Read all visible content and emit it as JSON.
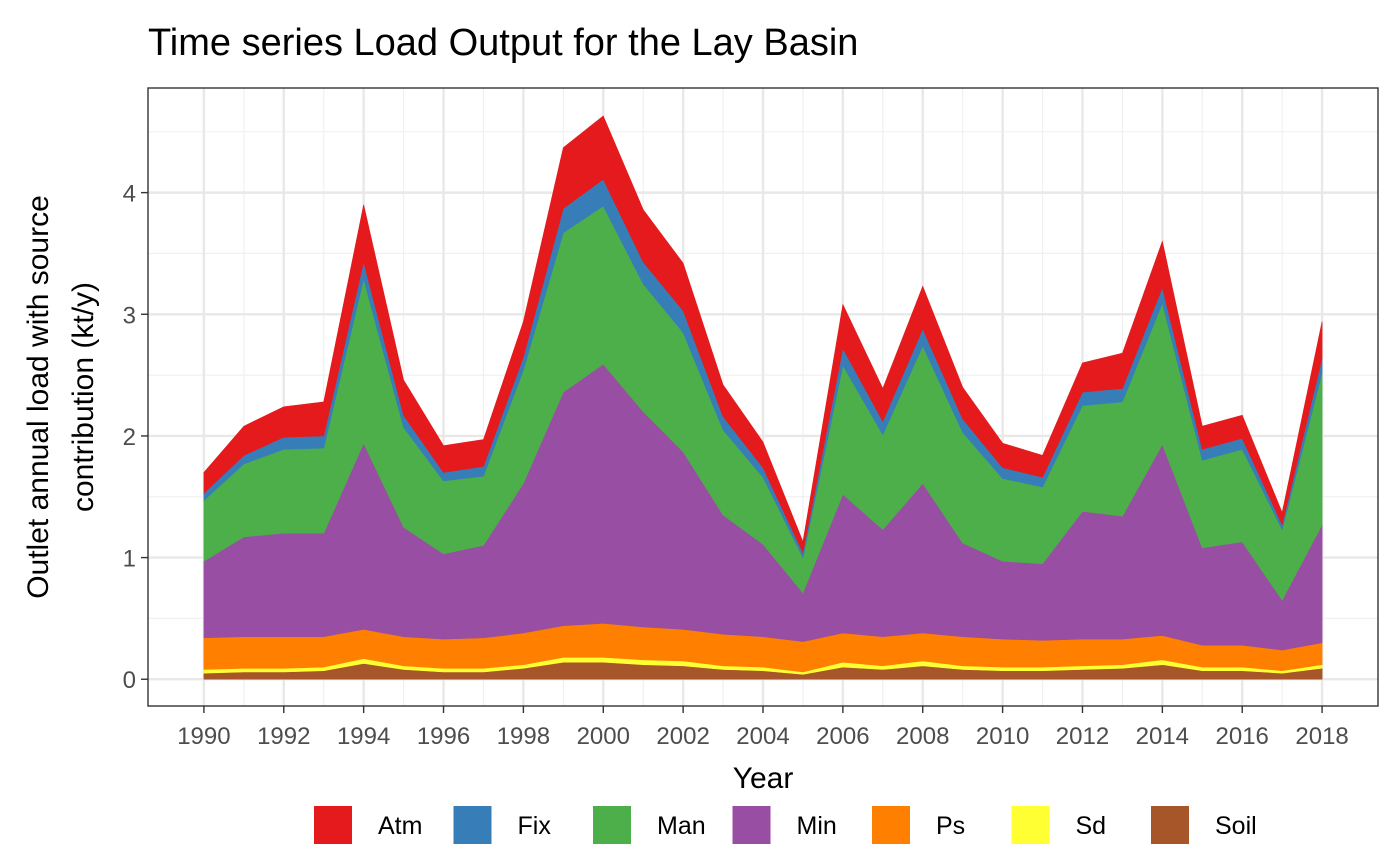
{
  "chart_data": {
    "type": "area",
    "stacked": true,
    "title": "Time series Load Output for the Lay Basin",
    "xlabel": "Year",
    "ylabel_lines": [
      "Outlet annual load with source",
      "contribution (kt/y)"
    ],
    "xlim": [
      1988.6,
      2019.4
    ],
    "ylim": [
      -0.22,
      4.86
    ],
    "x_ticks": [
      1990,
      1992,
      1994,
      1996,
      1998,
      2000,
      2002,
      2004,
      2006,
      2008,
      2010,
      2012,
      2014,
      2016,
      2018
    ],
    "y_ticks": [
      0,
      1,
      2,
      3,
      4
    ],
    "grid": true,
    "legend_position": "bottom",
    "x": [
      1990,
      1991,
      1992,
      1993,
      1994,
      1995,
      1996,
      1997,
      1998,
      1999,
      2000,
      2001,
      2002,
      2003,
      2004,
      2005,
      2006,
      2007,
      2008,
      2009,
      2010,
      2011,
      2012,
      2013,
      2014,
      2015,
      2016,
      2017,
      2018
    ],
    "series": [
      {
        "name": "Soil",
        "color": "#A65628",
        "values": [
          0.05,
          0.06,
          0.06,
          0.07,
          0.13,
          0.08,
          0.06,
          0.06,
          0.09,
          0.14,
          0.14,
          0.12,
          0.11,
          0.08,
          0.07,
          0.04,
          0.1,
          0.08,
          0.11,
          0.08,
          0.07,
          0.07,
          0.08,
          0.09,
          0.12,
          0.07,
          0.07,
          0.05,
          0.09
        ]
      },
      {
        "name": "Sd",
        "color": "#FFFF33",
        "values": [
          0.03,
          0.03,
          0.03,
          0.03,
          0.04,
          0.03,
          0.03,
          0.03,
          0.03,
          0.04,
          0.04,
          0.04,
          0.04,
          0.03,
          0.03,
          0.02,
          0.04,
          0.03,
          0.04,
          0.03,
          0.03,
          0.03,
          0.03,
          0.03,
          0.04,
          0.03,
          0.03,
          0.02,
          0.03
        ]
      },
      {
        "name": "Ps",
        "color": "#FF7F00",
        "values": [
          0.26,
          0.26,
          0.26,
          0.25,
          0.24,
          0.24,
          0.24,
          0.25,
          0.26,
          0.26,
          0.28,
          0.27,
          0.26,
          0.26,
          0.25,
          0.25,
          0.24,
          0.24,
          0.23,
          0.24,
          0.23,
          0.22,
          0.22,
          0.21,
          0.2,
          0.18,
          0.18,
          0.17,
          0.18
        ]
      },
      {
        "name": "Min",
        "color": "#984EA3",
        "values": [
          0.63,
          0.82,
          0.85,
          0.85,
          1.53,
          0.9,
          0.7,
          0.76,
          1.23,
          1.92,
          2.13,
          1.77,
          1.46,
          0.98,
          0.76,
          0.4,
          1.14,
          0.88,
          1.23,
          0.77,
          0.64,
          0.63,
          1.05,
          1.01,
          1.57,
          0.8,
          0.85,
          0.41,
          0.97
        ]
      },
      {
        "name": "Man",
        "color": "#4DAF4A",
        "values": [
          0.5,
          0.6,
          0.69,
          0.7,
          1.35,
          0.82,
          0.6,
          0.57,
          0.93,
          1.31,
          1.3,
          1.05,
          0.98,
          0.7,
          0.55,
          0.29,
          1.06,
          0.78,
          1.13,
          0.91,
          0.68,
          0.63,
          0.87,
          0.94,
          1.16,
          0.72,
          0.76,
          0.58,
          1.25
        ]
      },
      {
        "name": "Fix",
        "color": "#377EB8",
        "values": [
          0.06,
          0.07,
          0.1,
          0.1,
          0.14,
          0.1,
          0.07,
          0.08,
          0.11,
          0.2,
          0.22,
          0.18,
          0.18,
          0.11,
          0.08,
          0.04,
          0.14,
          0.11,
          0.14,
          0.11,
          0.09,
          0.08,
          0.11,
          0.11,
          0.13,
          0.09,
          0.09,
          0.04,
          0.12
        ]
      },
      {
        "name": "Atm",
        "color": "#E41A1C",
        "values": [
          0.17,
          0.24,
          0.25,
          0.28,
          0.47,
          0.29,
          0.22,
          0.22,
          0.29,
          0.5,
          0.52,
          0.43,
          0.39,
          0.26,
          0.21,
          0.09,
          0.36,
          0.27,
          0.35,
          0.26,
          0.2,
          0.18,
          0.24,
          0.29,
          0.38,
          0.19,
          0.19,
          0.1,
          0.3
        ]
      }
    ],
    "legend_order": [
      "Atm",
      "Fix",
      "Man",
      "Min",
      "Ps",
      "Sd",
      "Soil"
    ]
  }
}
